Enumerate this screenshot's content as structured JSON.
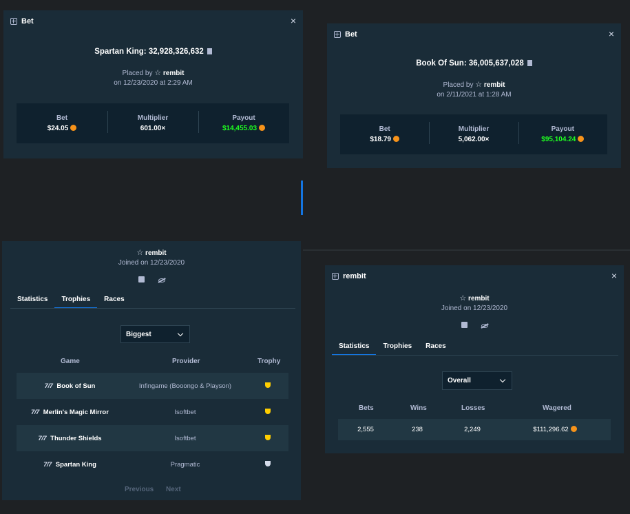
{
  "bet1": {
    "header": "Bet",
    "game": "Spartan King: 32,928,326,632",
    "placed_by_prefix": "Placed by",
    "user": "rembit",
    "date": "on 12/23/2020 at 2:29 AM",
    "bet_label": "Bet",
    "bet_value": "$24.05",
    "mult_label": "Multiplier",
    "mult_value": "601.00×",
    "payout_label": "Payout",
    "payout_value": "$14,455.03"
  },
  "bet2": {
    "header": "Bet",
    "game": "Book Of Sun: 36,005,637,028",
    "placed_by_prefix": "Placed by",
    "user": "rembit",
    "date": "on 2/11/2021 at 1:28 AM",
    "bet_label": "Bet",
    "bet_value": "$18.79",
    "mult_label": "Multiplier",
    "mult_value": "5,062.00×",
    "payout_label": "Payout",
    "payout_value": "$95,104.24"
  },
  "profile1": {
    "user": "rembit",
    "joined": "Joined on 12/23/2020",
    "tabs": [
      "Statistics",
      "Trophies",
      "Races"
    ],
    "active_tab": "Trophies",
    "select": "Biggest",
    "columns": [
      "Game",
      "Provider",
      "Trophy"
    ],
    "rows": [
      {
        "game": "Book of Sun",
        "provider": "Infingame (Booongo & Playson)"
      },
      {
        "game": "Merlin's Magic Mirror",
        "provider": "Isoftbet"
      },
      {
        "game": "Thunder Shields",
        "provider": "Isoftbet"
      },
      {
        "game": "Spartan King",
        "provider": "Pragmatic"
      }
    ],
    "prev": "Previous",
    "next": "Next"
  },
  "profile2": {
    "header": "rembit",
    "user": "rembit",
    "joined": "Joined on 12/23/2020",
    "tabs": [
      "Statistics",
      "Trophies",
      "Races"
    ],
    "active_tab": "Statistics",
    "select": "Overall",
    "columns": [
      "Bets",
      "Wins",
      "Losses",
      "Wagered"
    ],
    "values": [
      "2,555",
      "238",
      "2,249",
      "$111,296.62"
    ]
  },
  "colors": {
    "bg": "#1e2124",
    "panel": "#1a2c38",
    "inner": "#0f212e",
    "green": "#1fff20",
    "tab_active": "#1475e1",
    "coin": "#f7931a"
  },
  "icons": [
    "bet-icon",
    "close-icon",
    "copy-icon",
    "star-icon",
    "bitcoin-icon",
    "trophy-icon",
    "chevron-down-icon",
    "slot-icon"
  ]
}
